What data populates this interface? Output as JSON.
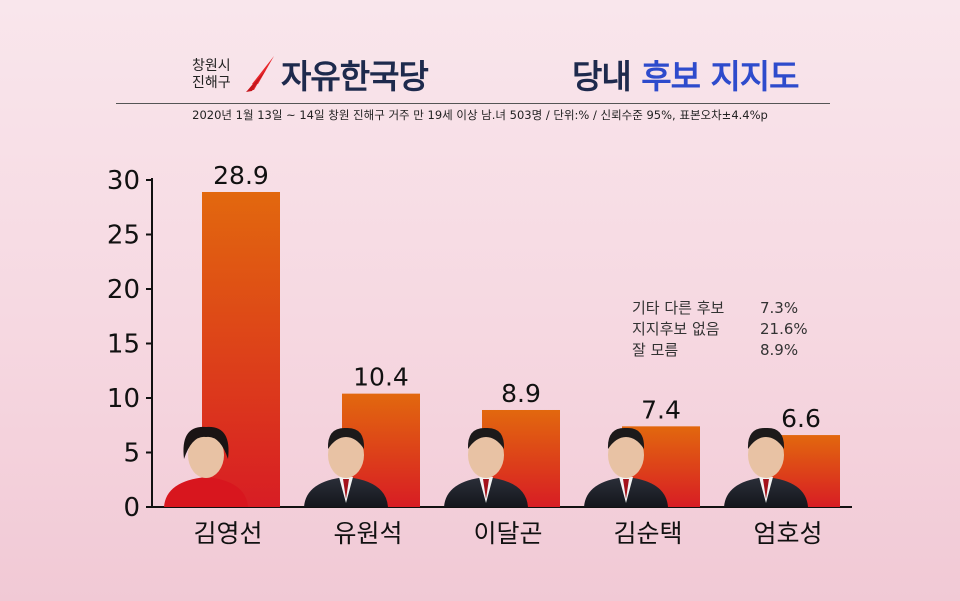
{
  "header": {
    "region_line1": "창원시",
    "region_line2": "진해구",
    "party": "자유한국당",
    "topic_black": "당내",
    "topic_blue": "후보 지지도",
    "subtitle": "2020년 1월 13일 ~ 14일  창원 진해구 거주 만 19세 이상 남.녀 503명 / 단위:% / 신뢰수준 95%, 표본오차±4.4%p"
  },
  "notes": [
    {
      "label": "기타 다른 후보",
      "value": "7.3%"
    },
    {
      "label": "지지후보 없음",
      "value": "21.6%"
    },
    {
      "label": "잘 모름",
      "value": "8.9%"
    }
  ],
  "colors": {
    "bar_top": "#e2680e",
    "bar_bottom": "#d81d24",
    "title_navy": "#1e2a4d",
    "title_blue": "#2e4bcc",
    "logo_red": "#e8262b"
  },
  "chart_data": {
    "type": "bar",
    "categories": [
      "김영선",
      "유원석",
      "이달곤",
      "김순택",
      "엄호성"
    ],
    "values": [
      28.9,
      10.4,
      8.9,
      7.4,
      6.6
    ],
    "value_labels": [
      "28.9",
      "10.4",
      "8.9",
      "7.4",
      "6.6"
    ],
    "yticks": [
      0,
      5,
      10,
      15,
      20,
      25,
      30
    ],
    "ylim": [
      0,
      30
    ],
    "grid": false,
    "legend": "none"
  }
}
